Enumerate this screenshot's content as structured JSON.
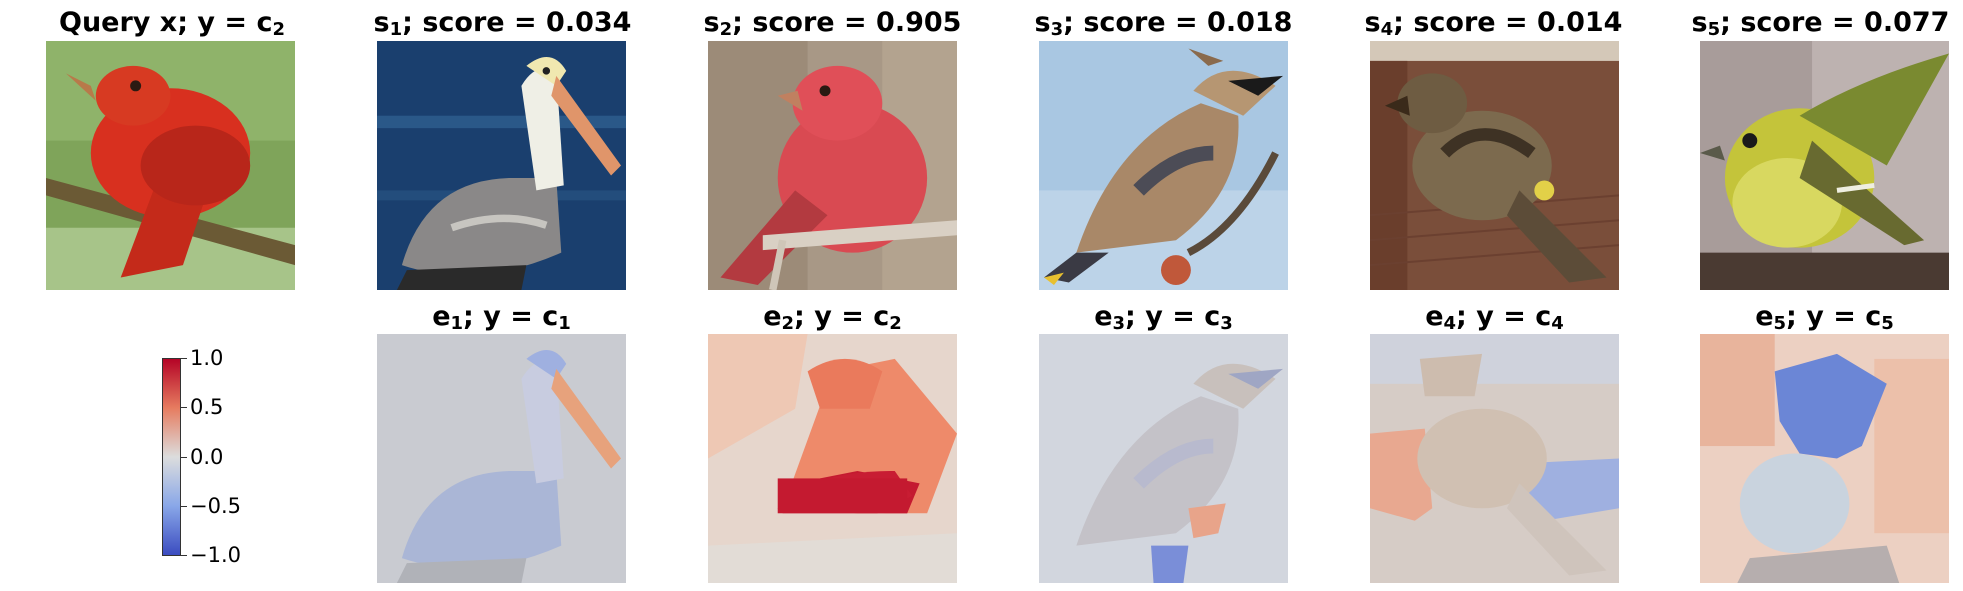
{
  "top_row": [
    {
      "title": "Query x; y = c",
      "sub": "2"
    },
    {
      "title_pre": "s",
      "sub": "1",
      "title_post": "; score = 0.034"
    },
    {
      "title_pre": "s",
      "sub": "2",
      "title_post": "; score = 0.905"
    },
    {
      "title_pre": "s",
      "sub": "3",
      "title_post": "; score = 0.018"
    },
    {
      "title_pre": "s",
      "sub": "4",
      "title_post": "; score = 0.014"
    },
    {
      "title_pre": "s",
      "sub": "5",
      "title_post": "; score = 0.077"
    }
  ],
  "bottom_row": [
    {
      "title_pre": "e",
      "sub": "1",
      "title_mid": "; y = c",
      "sub2": "1"
    },
    {
      "title_pre": "e",
      "sub": "2",
      "title_mid": "; y = c",
      "sub2": "2"
    },
    {
      "title_pre": "e",
      "sub": "3",
      "title_mid": "; y = c",
      "sub2": "3"
    },
    {
      "title_pre": "e",
      "sub": "4",
      "title_mid": "; y = c",
      "sub2": "4"
    },
    {
      "title_pre": "e",
      "sub": "5",
      "title_mid": "; y = c",
      "sub2": "5"
    }
  ],
  "colorbar": {
    "ticks": [
      "1.0",
      "0.5",
      "0.0",
      "−0.5",
      "−1.0"
    ],
    "colors": {
      "high": "#b40426",
      "mid": "#dcdddd",
      "low": "#3b4cc0"
    }
  }
}
